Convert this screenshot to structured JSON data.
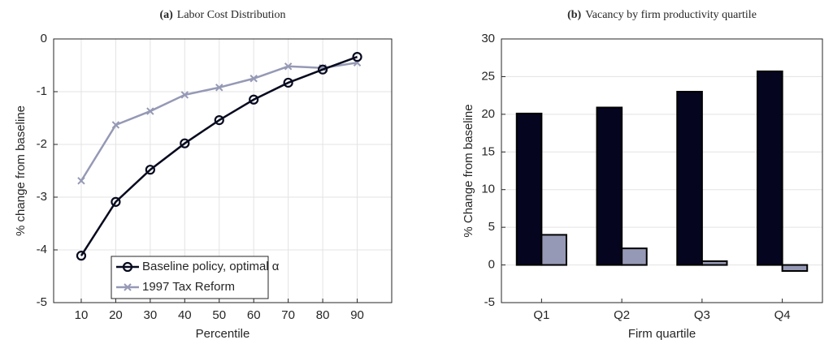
{
  "chart_data": [
    {
      "type": "line",
      "label": "(a)",
      "title": "Labor Cost Distribution",
      "x_label": "Percentile",
      "y_label": "% change from baseline",
      "x": [
        10,
        20,
        30,
        40,
        50,
        60,
        70,
        80,
        90
      ],
      "series": [
        {
          "name": "Baseline policy, optimal α",
          "color": "#070a1e",
          "marker": "circle",
          "values": [
            -4.11,
            -3.09,
            -2.48,
            -1.98,
            -1.54,
            -1.15,
            -0.83,
            -0.58,
            -0.34
          ]
        },
        {
          "name": "1997 Tax Reform",
          "color": "#9599b5",
          "marker": "x",
          "values": [
            -2.69,
            -1.63,
            -1.37,
            -1.06,
            -0.92,
            -0.75,
            -0.52,
            -0.55,
            -0.45
          ]
        }
      ],
      "xlim": [
        2,
        100
      ],
      "xticks": [
        10,
        20,
        30,
        40,
        50,
        60,
        70,
        80,
        90
      ],
      "ylim": [
        -5,
        0
      ],
      "yticks": [
        -5,
        -4,
        -3,
        -2,
        -1,
        0
      ],
      "grid": true,
      "legend": "lower center"
    },
    {
      "type": "bar",
      "label": "(b)",
      "title": "Vacancy by firm productivity quartile",
      "x_label": "Firm quartile",
      "y_label": "% Change from baseline",
      "categories": [
        "Q1",
        "Q2",
        "Q3",
        "Q4"
      ],
      "series": [
        {
          "color": "#050520",
          "values": [
            20.1,
            20.9,
            23.0,
            25.7
          ]
        },
        {
          "color": "#9599b5",
          "values": [
            4.0,
            2.2,
            0.5,
            -0.8
          ]
        }
      ],
      "ylim": [
        -5,
        30
      ],
      "yticks": [
        -5,
        0,
        5,
        10,
        15,
        20,
        25,
        30
      ],
      "grid": true
    }
  ]
}
